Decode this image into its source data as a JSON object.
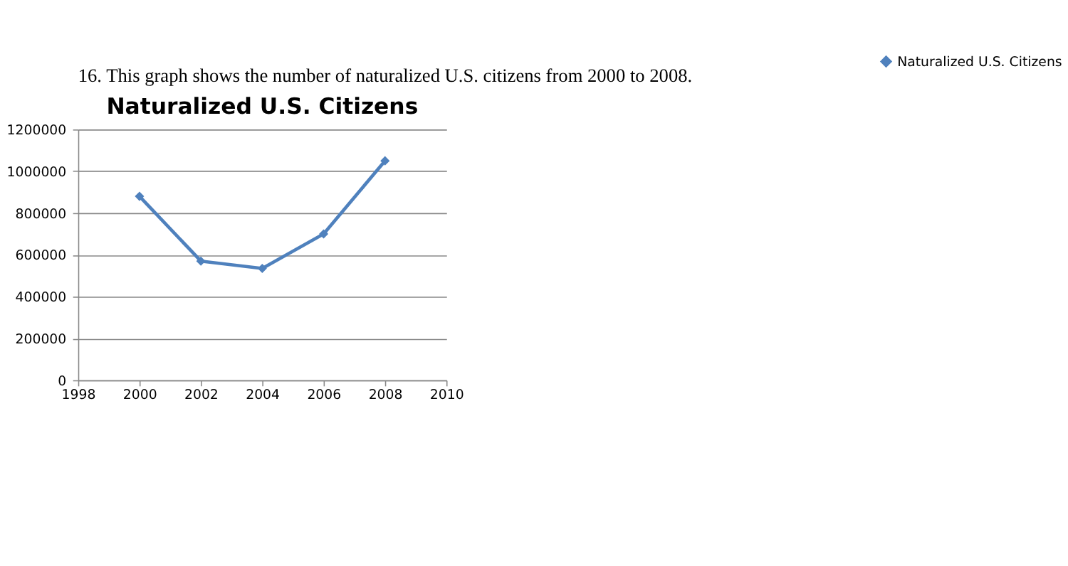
{
  "chart_data": {
    "type": "line",
    "title": "Naturalized U.S. Citizens",
    "annotations": [
      "16. This graph shows the number of naturalized U.S. citizens from 2000 to 2008."
    ],
    "x": [
      2000,
      2002,
      2004,
      2006,
      2008
    ],
    "series": [
      {
        "name": "Naturalized U.S. Citizens",
        "color": "#4f81bd",
        "values": [
          880000,
          570000,
          535000,
          700000,
          1050000
        ]
      }
    ],
    "xlim": [
      1998,
      2010
    ],
    "xticks": [
      1998,
      2000,
      2002,
      2004,
      2006,
      2008,
      2010
    ],
    "ylim": [
      0,
      1200000
    ],
    "yticks": [
      0,
      200000,
      400000,
      600000,
      800000,
      1000000,
      1200000
    ],
    "grid": "y",
    "legend": "right",
    "marker": "diamond",
    "line_style": "solid"
  }
}
